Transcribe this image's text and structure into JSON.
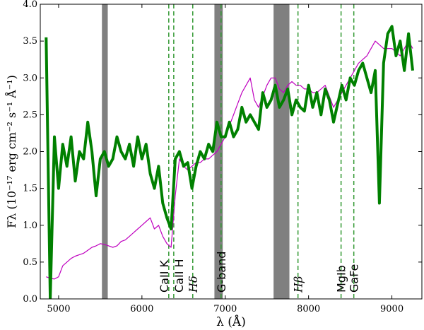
{
  "chart_data": {
    "type": "line",
    "xlabel": "λ (Å)",
    "ylabel": "Fλ (10⁻¹⁷ erg cm⁻² s⁻¹ Å⁻¹)",
    "xlim": [
      4780,
      9360
    ],
    "ylim": [
      0,
      4
    ],
    "xticks": [
      5000,
      6000,
      7000,
      8000,
      9000
    ],
    "yticks": [
      {
        "value": 0,
        "label": "0.0"
      },
      0.5,
      {
        "value": 1,
        "label": "1.0"
      },
      1.5,
      {
        "value": 2,
        "label": "2.0"
      },
      2.5,
      {
        "value": 3,
        "label": "3.0"
      },
      3.5,
      {
        "value": 4,
        "label": "4.0"
      }
    ],
    "shaded_regions": [
      [
        5520,
        5590
      ],
      [
        6870,
        6970
      ],
      [
        7580,
        7770
      ]
    ],
    "shade_color": "#808080",
    "line_color": "#339933",
    "lines": [
      {
        "x": 6322,
        "label": "CaII K"
      },
      {
        "x": 6382,
        "label": "CaII H"
      },
      {
        "x": 6610,
        "label": "Hδ",
        "italic": true
      },
      {
        "x": 6950,
        "label": "G-band"
      },
      {
        "x": 7873,
        "label": "Hβ",
        "italic": true
      },
      {
        "x": 8390,
        "label": "MgIb"
      },
      {
        "x": 8543,
        "label": "GaFe"
      }
    ],
    "x": [
      4850,
      4900,
      4950,
      5000,
      5050,
      5100,
      5150,
      5200,
      5250,
      5300,
      5350,
      5400,
      5450,
      5500,
      5550,
      5600,
      5650,
      5700,
      5750,
      5800,
      5850,
      5900,
      5950,
      6000,
      6050,
      6100,
      6150,
      6200,
      6250,
      6300,
      6350,
      6400,
      6450,
      6500,
      6550,
      6600,
      6650,
      6700,
      6750,
      6800,
      6850,
      6900,
      6950,
      7000,
      7050,
      7100,
      7150,
      7200,
      7250,
      7300,
      7350,
      7400,
      7450,
      7500,
      7550,
      7600,
      7650,
      7700,
      7750,
      7800,
      7850,
      7900,
      7950,
      8000,
      8050,
      8100,
      8150,
      8200,
      8250,
      8300,
      8350,
      8400,
      8450,
      8500,
      8550,
      8600,
      8650,
      8700,
      8750,
      8800,
      8850,
      8900,
      8950,
      9000,
      9050,
      9100,
      9150,
      9200,
      9250
    ],
    "series": [
      {
        "color": "#bf00bf",
        "width": 1.2,
        "values": [
          0.3,
          0.28,
          0.27,
          0.3,
          0.45,
          0.5,
          0.55,
          0.58,
          0.6,
          0.62,
          0.66,
          0.7,
          0.72,
          0.75,
          0.74,
          0.72,
          0.7,
          0.72,
          0.78,
          0.8,
          0.85,
          0.9,
          0.95,
          1.0,
          1.05,
          1.1,
          0.95,
          1.0,
          0.85,
          0.75,
          0.7,
          1.4,
          1.9,
          1.8,
          1.75,
          1.8,
          1.85,
          1.85,
          1.9,
          1.9,
          1.95,
          2.0,
          2.1,
          2.2,
          2.35,
          2.5,
          2.65,
          2.8,
          2.9,
          3.0,
          2.7,
          2.6,
          2.75,
          2.9,
          3.0,
          3.0,
          2.85,
          2.8,
          2.9,
          2.95,
          2.9,
          2.9,
          2.85,
          2.85,
          2.8,
          2.8,
          2.85,
          2.9,
          2.75,
          2.6,
          2.7,
          2.8,
          2.9,
          3.0,
          3.1,
          3.2,
          3.25,
          3.3,
          3.4,
          3.5,
          3.45,
          3.4,
          3.4,
          3.4,
          3.35,
          3.3,
          3.4,
          3.5,
          3.4
        ]
      },
      {
        "color": "#008000",
        "width": 4,
        "values": [
          3.55,
          0.0,
          2.2,
          1.5,
          2.1,
          1.8,
          2.2,
          1.6,
          2.0,
          1.9,
          2.4,
          2.0,
          1.4,
          1.9,
          2.0,
          1.8,
          1.9,
          2.2,
          2.0,
          1.9,
          2.1,
          1.8,
          2.2,
          1.9,
          2.1,
          1.7,
          1.5,
          1.8,
          1.3,
          1.1,
          0.95,
          1.9,
          2.0,
          1.8,
          1.85,
          1.5,
          1.8,
          2.0,
          1.9,
          2.1,
          2.0,
          2.4,
          2.2,
          2.2,
          2.4,
          2.2,
          2.3,
          2.6,
          2.4,
          2.5,
          2.4,
          2.3,
          2.8,
          2.6,
          2.7,
          2.9,
          2.6,
          2.7,
          2.85,
          2.5,
          2.7,
          2.6,
          2.55,
          2.9,
          2.6,
          2.8,
          2.5,
          2.85,
          2.7,
          2.4,
          2.65,
          2.9,
          2.7,
          3.0,
          2.9,
          3.1,
          3.2,
          3.0,
          2.8,
          3.1,
          1.3,
          3.2,
          3.6,
          3.7,
          3.3,
          3.5,
          3.1,
          3.6,
          3.1
        ]
      }
    ]
  }
}
